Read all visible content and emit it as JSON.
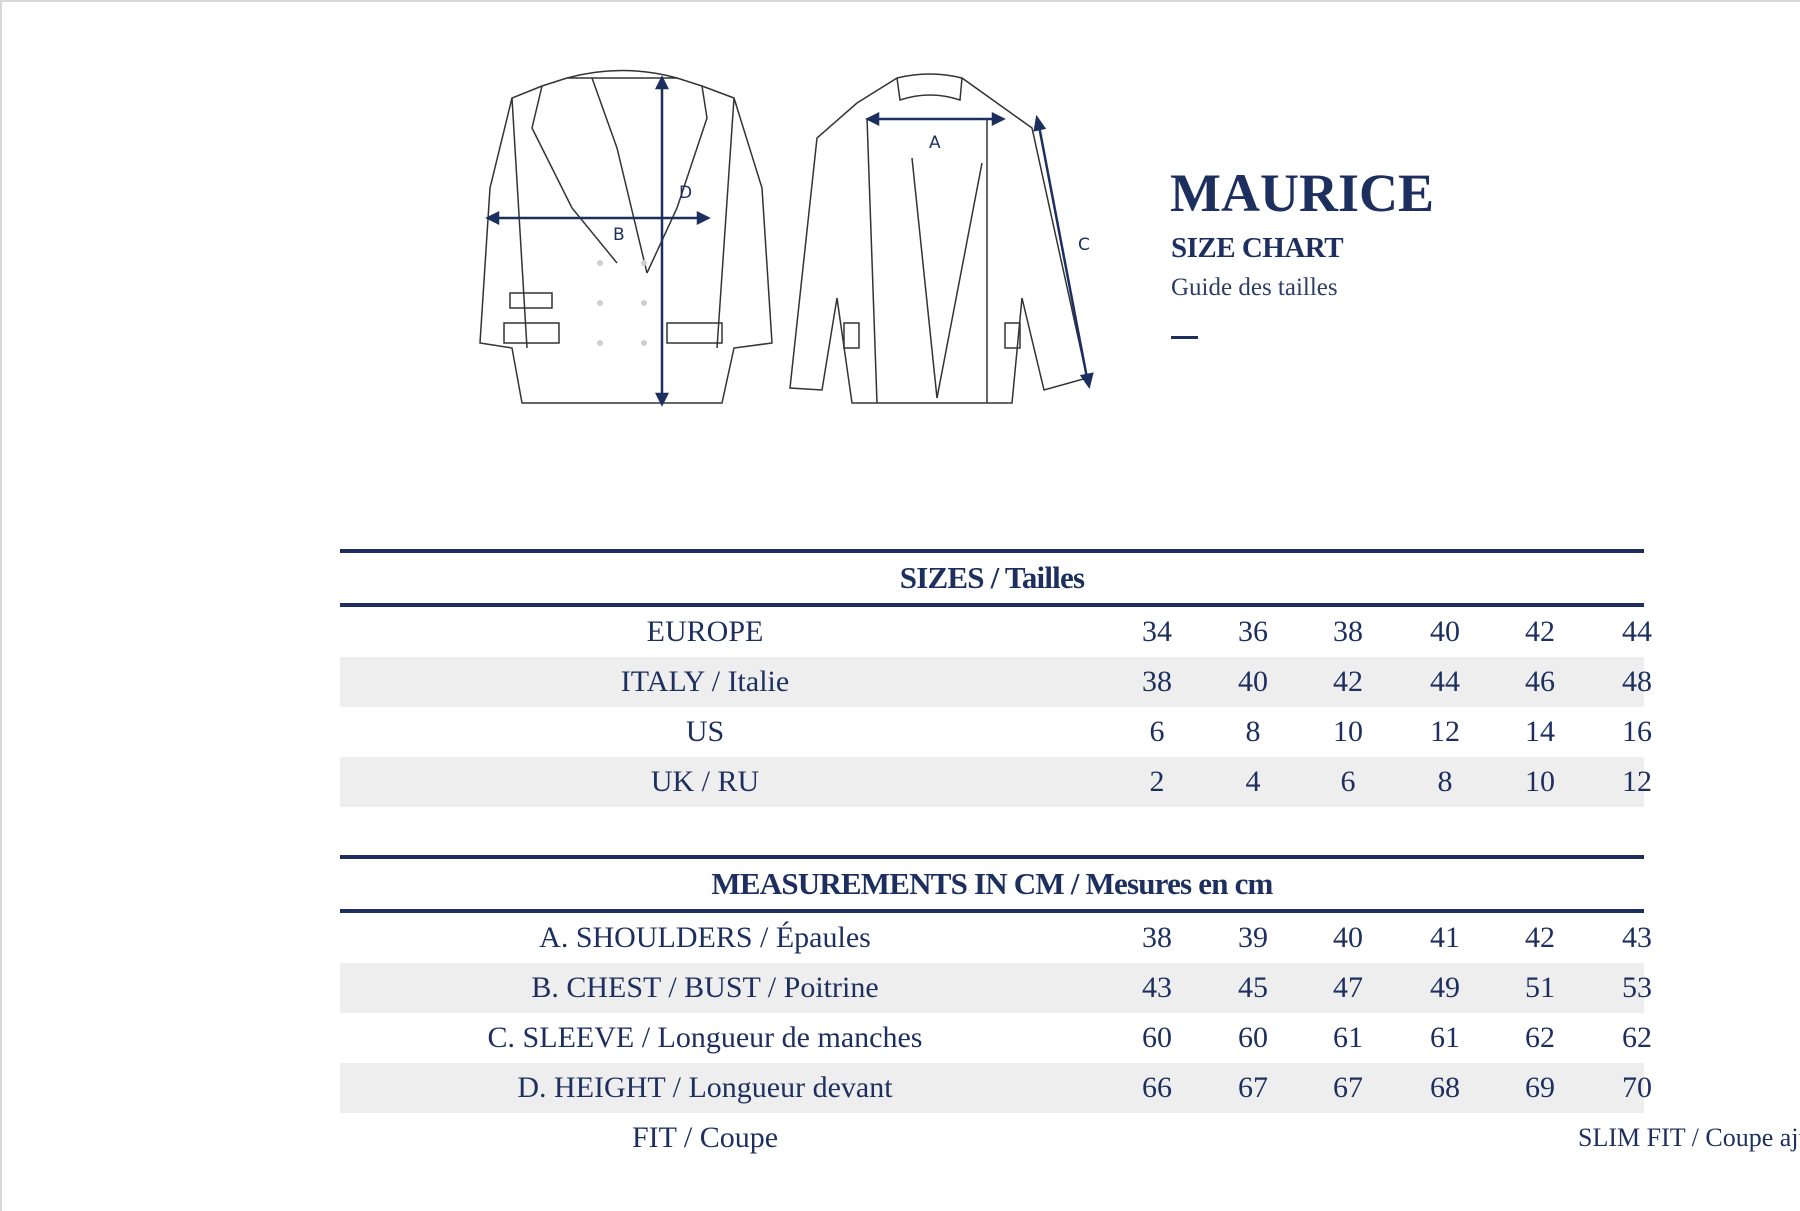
{
  "header": {
    "title": "MAURICE",
    "subtitle": "SIZE CHART",
    "subtitle_fr": "Guide des tailles"
  },
  "diagram": {
    "labels": {
      "a": "A",
      "b": "B",
      "c": "C",
      "d": "D"
    }
  },
  "sizes": {
    "heading": "SIZES / Tailles",
    "rows": [
      {
        "label": "EUROPE",
        "values": [
          "34",
          "36",
          "38",
          "40",
          "42",
          "44"
        ]
      },
      {
        "label": "ITALY / Italie",
        "values": [
          "38",
          "40",
          "42",
          "44",
          "46",
          "48"
        ]
      },
      {
        "label": "US",
        "values": [
          "6",
          "8",
          "10",
          "12",
          "14",
          "16"
        ]
      },
      {
        "label": "UK / RU",
        "values": [
          "2",
          "4",
          "6",
          "8",
          "10",
          "12"
        ]
      }
    ]
  },
  "measurements": {
    "heading": "MEASUREMENTS IN CM / Mesures en cm",
    "rows": [
      {
        "label": "A. SHOULDERS / Épaules",
        "values": [
          "38",
          "39",
          "40",
          "41",
          "42",
          "43"
        ]
      },
      {
        "label": "B. CHEST / BUST / Poitrine",
        "values": [
          "43",
          "45",
          "47",
          "49",
          "51",
          "53"
        ]
      },
      {
        "label": "C. SLEEVE / Longueur de manches",
        "values": [
          "60",
          "60",
          "61",
          "61",
          "62",
          "62"
        ]
      },
      {
        "label": "D. HEIGHT / Longueur devant",
        "values": [
          "66",
          "67",
          "67",
          "68",
          "69",
          "70"
        ]
      }
    ],
    "fit": {
      "label": "FIT / Coupe",
      "value": "SLIM FIT / Coupe ajustée"
    }
  },
  "colors": {
    "navy": "#1c2f5f",
    "row_alt": "#eeeeef"
  }
}
